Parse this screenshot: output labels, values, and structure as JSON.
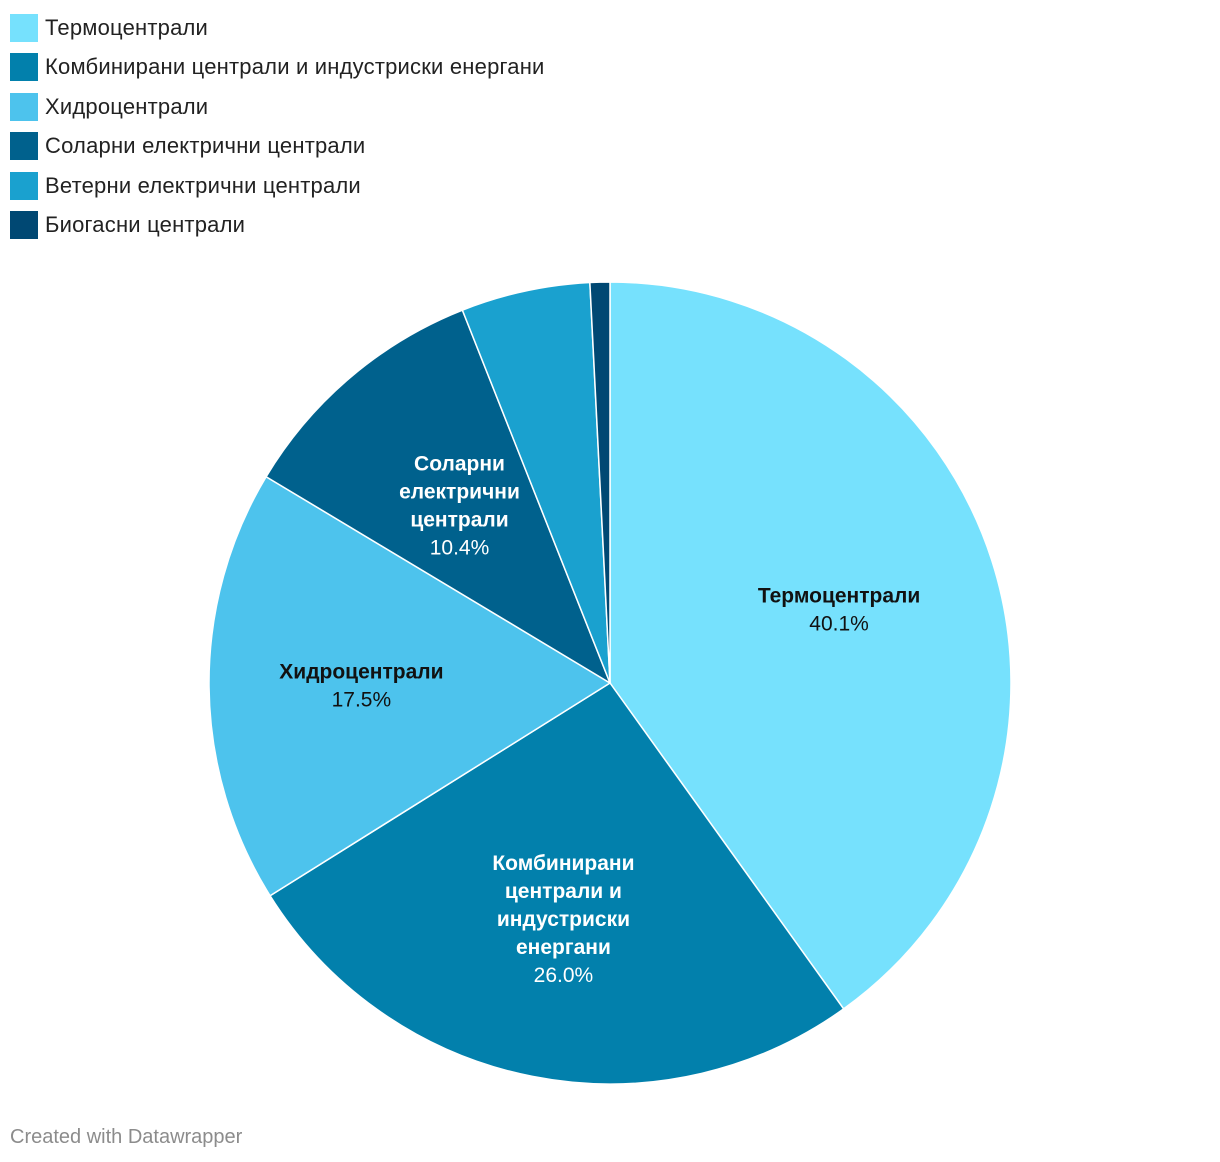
{
  "chart_data": {
    "type": "pie",
    "categories": [
      "Термоцентрали",
      "Комбинирани централи и индустриски енергани",
      "Хидроцентрали",
      "Соларни електрични централи",
      "Ветерни електрични централи",
      "Биогасни централи"
    ],
    "values": [
      40.1,
      26.0,
      17.5,
      10.4,
      5.2,
      0.8
    ],
    "value_labels": [
      "40.1%",
      "26.0%",
      "17.5%",
      "10.4%",
      "",
      ""
    ],
    "slice_label_lines": [
      [
        "Термоцентрали"
      ],
      [
        "Комбинирани",
        "централи и",
        "индустриски",
        "енергани"
      ],
      [
        "Хидроцентрали"
      ],
      [
        "Соларни",
        "електрични",
        "централи"
      ],
      [],
      []
    ],
    "colors": [
      "#76e1fd",
      "#0280ac",
      "#4dc3ed",
      "#00618d",
      "#1aa1cf",
      "#004873"
    ],
    "label_text_colors": [
      "#111111",
      "#ffffff",
      "#111111",
      "#ffffff",
      "#ffffff",
      "#ffffff"
    ],
    "legend_placement": "top-left",
    "start_angle_deg": 0,
    "direction": "clockwise"
  },
  "footer": "Created with Datawrapper"
}
